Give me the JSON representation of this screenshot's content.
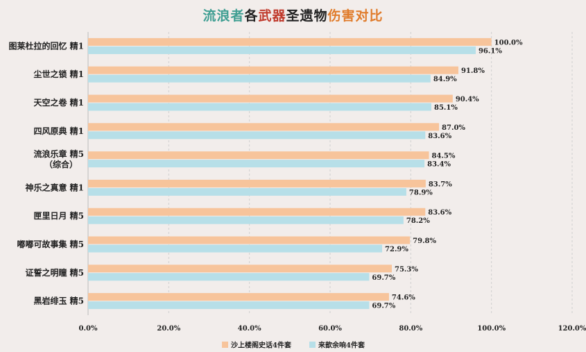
{
  "title_parts": [
    {
      "text": "流浪者",
      "color": "#3f9e92"
    },
    {
      "text": "各",
      "color": "#222222"
    },
    {
      "text": "武器",
      "color": "#c0392b"
    },
    {
      "text": "圣遗物",
      "color": "#222222"
    },
    {
      "text": "伤害对比",
      "color": "#e07b2a"
    }
  ],
  "chart_data": {
    "type": "bar",
    "orientation": "horizontal",
    "categories": [
      "图莱杜拉的回忆 精1",
      "尘世之锁 精1",
      "天空之卷 精1",
      "四风原典 精1",
      "流浪乐章 精5\n（综合）",
      "神乐之真意 精1",
      "匣里日月 精5",
      "嘟嘟可故事集 精5",
      "证誓之明瞳 精5",
      "黑岩绯玉 精5"
    ],
    "series": [
      {
        "name": "沙上楼阁史话4件套",
        "color": "#f7c49b",
        "values": [
          100.0,
          91.8,
          90.4,
          87.0,
          84.5,
          83.7,
          83.6,
          79.8,
          75.3,
          74.6
        ],
        "labels": [
          "100.0%",
          "91.8%",
          "90.4%",
          "87.0%",
          "84.5%",
          "83.7%",
          "83.6%",
          "79.8%",
          "75.3%",
          "74.6%"
        ]
      },
      {
        "name": "来歆余响4件套",
        "color": "#b7dfe8",
        "values": [
          96.1,
          84.9,
          85.1,
          83.6,
          83.4,
          78.9,
          78.2,
          72.9,
          69.7,
          69.7
        ],
        "labels": [
          "96.1%",
          "84.9%",
          "85.1%",
          "83.6%",
          "83.4%",
          "78.9%",
          "78.2%",
          "72.9%",
          "69.7%",
          "69.7%"
        ]
      }
    ],
    "xlim": [
      0,
      120
    ],
    "xticks": [
      0,
      20,
      40,
      60,
      80,
      100,
      120
    ],
    "xtick_labels": [
      "0.0%",
      "20.0%",
      "40.0%",
      "60.0%",
      "80.0%",
      "100.0%",
      "120.0%"
    ],
    "grid": "vertical dashed",
    "legend_position": "bottom"
  }
}
